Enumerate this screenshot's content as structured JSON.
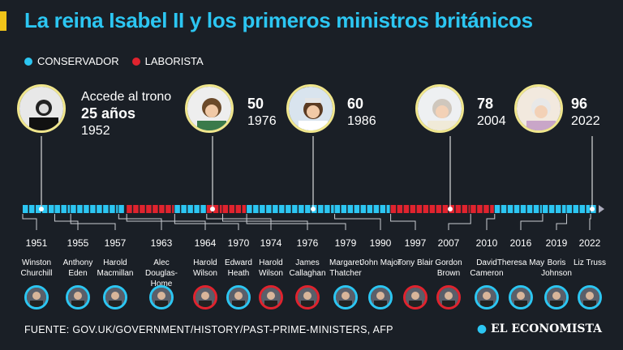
{
  "title": "La reina Isabel II y los primeros ministros británicos",
  "legend": {
    "conservative_label": "CONSERVADOR",
    "labour_label": "LABORISTA",
    "conservative_color": "#2cc6f2",
    "labour_color": "#e0232e"
  },
  "milestones": [
    {
      "caption": "Accede al trono",
      "age": "25 años",
      "year": "1952"
    },
    {
      "age": "50",
      "year": "1976"
    },
    {
      "age": "60",
      "year": "1986"
    },
    {
      "age": "78",
      "year": "2004"
    },
    {
      "age": "96",
      "year": "2022"
    }
  ],
  "prime_ministers": [
    {
      "year": "1951",
      "name": "Winston Churchill",
      "party": "conservative"
    },
    {
      "year": "1955",
      "name": "Anthony Eden",
      "party": "conservative"
    },
    {
      "year": "1957",
      "name": "Harold Macmillan",
      "party": "conservative"
    },
    {
      "year": "1963",
      "name": "Alec Douglas-Home",
      "party": "conservative"
    },
    {
      "year": "1964",
      "name": "Harold Wilson",
      "party": "labour"
    },
    {
      "year": "1970",
      "name": "Edward Heath",
      "party": "conservative"
    },
    {
      "year": "1974",
      "name": "Harold Wilson",
      "party": "labour"
    },
    {
      "year": "1976",
      "name": "James Callaghan",
      "party": "labour"
    },
    {
      "year": "1979",
      "name": "Margaret Thatcher",
      "party": "conservative"
    },
    {
      "year": "1990",
      "name": "John Major",
      "party": "conservative"
    },
    {
      "year": "1997",
      "name": "Tony Blair",
      "party": "labour"
    },
    {
      "year": "2007",
      "name": "Gordon Brown",
      "party": "labour"
    },
    {
      "year": "2010",
      "name": "David Cameron",
      "party": "conservative"
    },
    {
      "year": "2016",
      "name": "Theresa May",
      "party": "conservative"
    },
    {
      "year": "2019",
      "name": "Boris Johnson",
      "party": "conservative"
    },
    {
      "year": "2022",
      "name": "Liz Truss",
      "party": "conservative"
    }
  ],
  "source": "FUENTE: GOV.UK/GOVERNMENT/HISTORY/PAST-PRIME-MINISTERS, AFP",
  "publisher": "EL ECONOMISTA"
}
